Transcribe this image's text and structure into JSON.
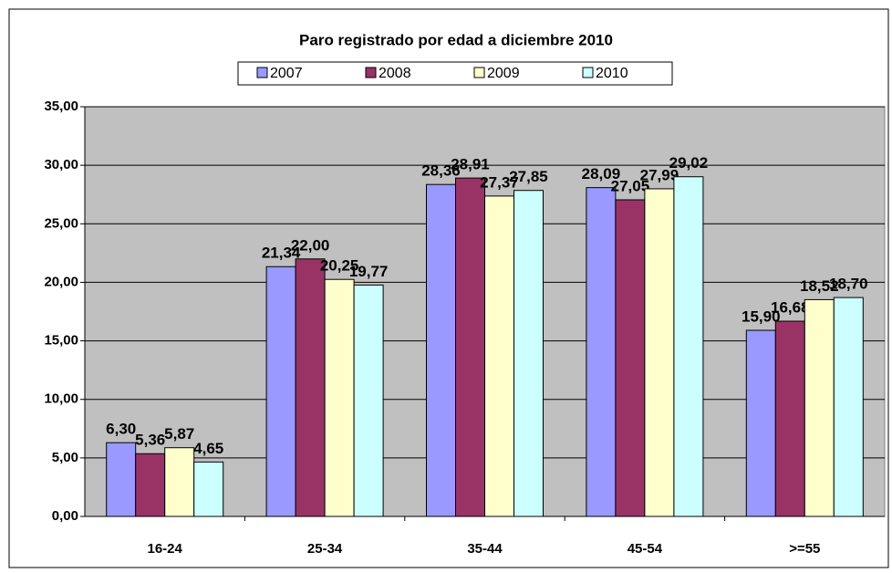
{
  "chart_data": {
    "type": "bar",
    "title": "Paro registrado por edad a diciembre 2010",
    "categories": [
      "16-24",
      "25-34",
      "35-44",
      "45-54",
      ">=55"
    ],
    "series": [
      {
        "name": "2007",
        "color": "#9999ff",
        "values": [
          6.3,
          21.34,
          28.36,
          28.09,
          15.9
        ],
        "value_labels": [
          "6,30",
          "21,34",
          "28,36",
          "28,09",
          "15,90"
        ]
      },
      {
        "name": "2008",
        "color": "#993366",
        "values": [
          5.36,
          22.0,
          28.91,
          27.05,
          16.68
        ],
        "value_labels": [
          "5,36",
          "22,00",
          "28,91",
          "27,05",
          "16,68"
        ]
      },
      {
        "name": "2009",
        "color": "#ffffcc",
        "values": [
          5.87,
          20.25,
          27.37,
          27.99,
          18.52
        ],
        "value_labels": [
          "5,87",
          "20,25",
          "27,37",
          "27,99",
          "18,52"
        ]
      },
      {
        "name": "2010",
        "color": "#ccffff",
        "values": [
          4.65,
          19.77,
          27.85,
          29.02,
          18.7
        ],
        "value_labels": [
          "4,65",
          "19,77",
          "27,85",
          "29,02",
          "18,70"
        ]
      }
    ],
    "ylim": [
      0,
      35
    ],
    "yticks": [
      {
        "value": 0,
        "label": "0,00"
      },
      {
        "value": 5,
        "label": "5,00"
      },
      {
        "value": 10,
        "label": "10,00"
      },
      {
        "value": 15,
        "label": "15,00"
      },
      {
        "value": 20,
        "label": "20,00"
      },
      {
        "value": 25,
        "label": "25,00"
      },
      {
        "value": 30,
        "label": "30,00"
      },
      {
        "value": 35,
        "label": "35,00"
      }
    ],
    "grid": true,
    "legend": "top"
  }
}
